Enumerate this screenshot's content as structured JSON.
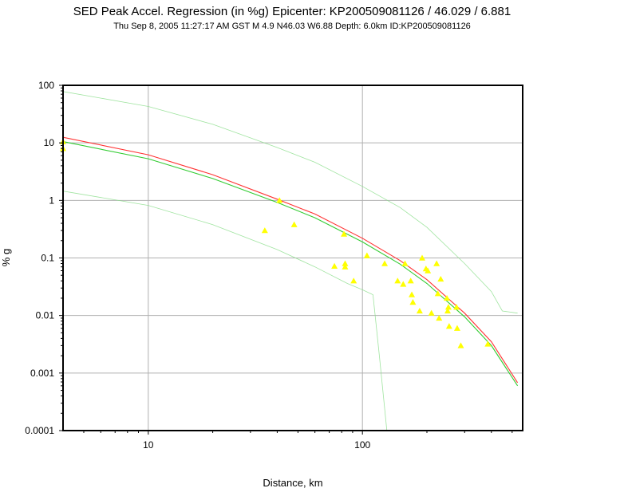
{
  "chart_data": {
    "type": "scatter",
    "title": "SED Peak Accel. Regression (in %g) Epicenter: KP200509081126 / 46.029 / 6.881",
    "subtitle": "Thu Sep  8, 2005 11:27:17 AM GST   M 4.9   N46.03 W6.88   Depth: 6.0km   ID:KP200509081126",
    "xlabel": "Distance, km",
    "ylabel": "% g",
    "xscale": "log",
    "yscale": "log",
    "xlim": [
      4,
      560
    ],
    "ylim": [
      0.0001,
      100
    ],
    "grid": true,
    "x_ticks": [
      {
        "value": 10,
        "label": "10"
      },
      {
        "value": 100,
        "label": "100"
      }
    ],
    "y_ticks": [
      {
        "value": 100,
        "label": "100"
      },
      {
        "value": 10,
        "label": "10"
      },
      {
        "value": 1,
        "label": "1"
      },
      {
        "value": 0.1,
        "label": "0.1"
      },
      {
        "value": 0.01,
        "label": "0.01"
      },
      {
        "value": 0.001,
        "label": "0.001"
      },
      {
        "value": 0.0001,
        "label": "0.0001"
      }
    ],
    "colors": {
      "regression_red": "#ff3333",
      "regression_green": "#33cc33",
      "bounds_green": "#88dd88",
      "stations": "#ffff00",
      "grid": "#b0b0b0",
      "frame": "#000000"
    },
    "series": [
      {
        "role": "regression-red",
        "color": "#ff3333",
        "x": [
          4,
          10,
          20,
          40,
          60,
          100,
          150,
          200,
          300,
          400,
          530
        ],
        "y": [
          12.5,
          6.2,
          2.8,
          1.05,
          0.58,
          0.22,
          0.09,
          0.042,
          0.011,
          0.0035,
          0.00068
        ]
      },
      {
        "role": "regression-green",
        "color": "#33cc33",
        "x": [
          4,
          10,
          20,
          40,
          60,
          100,
          150,
          200,
          300,
          400,
          530
        ],
        "y": [
          10.5,
          5.3,
          2.4,
          0.92,
          0.5,
          0.19,
          0.078,
          0.036,
          0.0095,
          0.003,
          0.0006
        ]
      },
      {
        "role": "upper-bound",
        "color": "#88dd88",
        "x": [
          4,
          10,
          20,
          40,
          60,
          100,
          150,
          200,
          300,
          400,
          450,
          530
        ],
        "y": [
          78,
          43,
          21,
          8.3,
          4.6,
          1.75,
          0.75,
          0.34,
          0.08,
          0.026,
          0.012,
          0.011
        ]
      },
      {
        "role": "lower-bound",
        "color": "#88dd88",
        "x": [
          4,
          10,
          20,
          40,
          60,
          85,
          100,
          112,
          120,
          130
        ],
        "y": [
          1.45,
          0.82,
          0.38,
          0.14,
          0.07,
          0.036,
          0.028,
          0.023,
          0.002,
          0.0001
        ]
      }
    ],
    "points": [
      {
        "x": 4.0,
        "y": 10.5
      },
      {
        "x": 4.0,
        "y": 8.0
      },
      {
        "x": 35,
        "y": 0.3
      },
      {
        "x": 41,
        "y": 1.0
      },
      {
        "x": 48,
        "y": 0.38
      },
      {
        "x": 74,
        "y": 0.072
      },
      {
        "x": 82,
        "y": 0.26
      },
      {
        "x": 83,
        "y": 0.08
      },
      {
        "x": 83,
        "y": 0.07
      },
      {
        "x": 91,
        "y": 0.04
      },
      {
        "x": 105,
        "y": 0.11
      },
      {
        "x": 127,
        "y": 0.08
      },
      {
        "x": 146,
        "y": 0.04
      },
      {
        "x": 155,
        "y": 0.035
      },
      {
        "x": 158,
        "y": 0.08
      },
      {
        "x": 168,
        "y": 0.04
      },
      {
        "x": 170,
        "y": 0.023
      },
      {
        "x": 172,
        "y": 0.017
      },
      {
        "x": 185,
        "y": 0.012
      },
      {
        "x": 190,
        "y": 0.1
      },
      {
        "x": 198,
        "y": 0.065
      },
      {
        "x": 202,
        "y": 0.06
      },
      {
        "x": 210,
        "y": 0.011
      },
      {
        "x": 222,
        "y": 0.08
      },
      {
        "x": 225,
        "y": 0.024
      },
      {
        "x": 228,
        "y": 0.009
      },
      {
        "x": 232,
        "y": 0.043
      },
      {
        "x": 248,
        "y": 0.02
      },
      {
        "x": 250,
        "y": 0.012
      },
      {
        "x": 252,
        "y": 0.014
      },
      {
        "x": 254,
        "y": 0.0065
      },
      {
        "x": 275,
        "y": 0.014
      },
      {
        "x": 277,
        "y": 0.006
      },
      {
        "x": 288,
        "y": 0.003
      },
      {
        "x": 385,
        "y": 0.0032
      }
    ]
  }
}
